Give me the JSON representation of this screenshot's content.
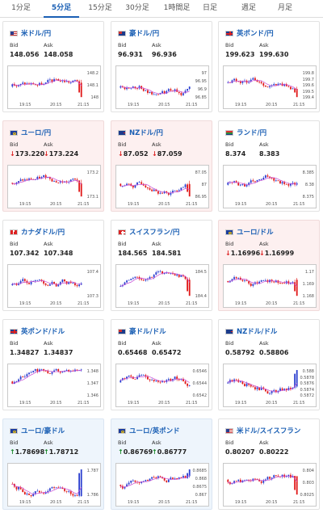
{
  "tabs": [
    {
      "label": "1分足",
      "active": false
    },
    {
      "label": "5分足",
      "active": true
    },
    {
      "label": "15分足",
      "active": false
    },
    {
      "label": "30分足",
      "active": false
    },
    {
      "label": "1時間足",
      "active": false
    },
    {
      "label": "日足",
      "active": false
    },
    {
      "label": "週足",
      "active": false
    },
    {
      "label": "月足",
      "active": false
    }
  ],
  "labels": {
    "bid": "Bid",
    "ask": "Ask"
  },
  "x_ticks": [
    "19:15",
    "20:15",
    "21:15"
  ],
  "colors": {
    "up_candle": "#2b3fcf",
    "down_candle": "#e11919",
    "ma_line": "#c84bd6",
    "link": "#1a5fb4"
  },
  "pairs": [
    {
      "name": "米ドル/円",
      "flag": "us-flag",
      "trend": "none",
      "bid": "148.056",
      "ask": "148.058",
      "y_ticks": [
        "148.2",
        "148.1",
        "148"
      ]
    },
    {
      "name": "豪ドル/円",
      "flag": "au-flag",
      "trend": "none",
      "bid": "96.931",
      "ask": "96.936",
      "y_ticks": [
        "97",
        "96.95",
        "96.9",
        "96.85"
      ]
    },
    {
      "name": "英ポンド/円",
      "flag": "gb-flag",
      "trend": "none",
      "bid": "199.623",
      "ask": "199.630",
      "y_ticks": [
        "199.8",
        "199.7",
        "199.6",
        "199.5",
        "199.4"
      ]
    },
    {
      "name": "ユーロ/円",
      "flag": "eu-flag",
      "trend": "down",
      "bid": "173.220",
      "ask": "173.224",
      "y_ticks": [
        "173.2",
        "173.1"
      ]
    },
    {
      "name": "NZドル/円",
      "flag": "nz-flag",
      "trend": "down",
      "bid": "87.052",
      "ask": "87.059",
      "y_ticks": [
        "87.05",
        "87",
        "86.95"
      ]
    },
    {
      "name": "ランド/円",
      "flag": "za-flag",
      "trend": "none",
      "bid": "8.374",
      "ask": "8.383",
      "y_ticks": [
        "8.385",
        "8.38",
        "8.375"
      ]
    },
    {
      "name": "カナダドル/円",
      "flag": "ca-flag",
      "trend": "none",
      "bid": "107.342",
      "ask": "107.348",
      "y_ticks": [
        "107.4",
        "107.3"
      ]
    },
    {
      "name": "スイスフラン/円",
      "flag": "ch-flag",
      "trend": "none",
      "bid": "184.565",
      "ask": "184.581",
      "y_ticks": [
        "184.5",
        "184.4"
      ]
    },
    {
      "name": "ユーロ/ドル",
      "flag": "eu-us-flag",
      "trend": "down",
      "bid": "1.16996",
      "ask": "1.16999",
      "y_ticks": [
        "1.17",
        "1.169",
        "1.168"
      ]
    },
    {
      "name": "英ポンド/ドル",
      "flag": "gb-us-flag",
      "trend": "none",
      "bid": "1.34827",
      "ask": "1.34837",
      "y_ticks": [
        "1.348",
        "1.347",
        "1.346"
      ]
    },
    {
      "name": "豪ドル/ドル",
      "flag": "au-us-flag",
      "trend": "none",
      "bid": "0.65468",
      "ask": "0.65472",
      "y_ticks": [
        "0.6546",
        "0.6544",
        "0.6542"
      ]
    },
    {
      "name": "NZドル/ドル",
      "flag": "nz-us-flag",
      "trend": "none",
      "bid": "0.58792",
      "ask": "0.58806",
      "y_ticks": [
        "0.588",
        "0.5878",
        "0.5876",
        "0.5874",
        "0.5872"
      ]
    },
    {
      "name": "ユーロ/豪ドル",
      "flag": "eu-au-flag",
      "trend": "up",
      "bid": "1.78698",
      "ask": "1.78712",
      "y_ticks": [
        "1.787",
        "1.786"
      ]
    },
    {
      "name": "ユーロ/英ポンド",
      "flag": "eu-gb-flag",
      "trend": "up",
      "bid": "0.86769",
      "ask": "0.86777",
      "y_ticks": [
        "0.8685",
        "0.868",
        "0.8675",
        "0.867"
      ]
    },
    {
      "name": "米ドル/スイスフラン",
      "flag": "us-ch-flag",
      "trend": "none",
      "bid": "0.80207",
      "ask": "0.80222",
      "y_ticks": [
        "0.804",
        "0.803",
        "0.8025"
      ]
    }
  ]
}
